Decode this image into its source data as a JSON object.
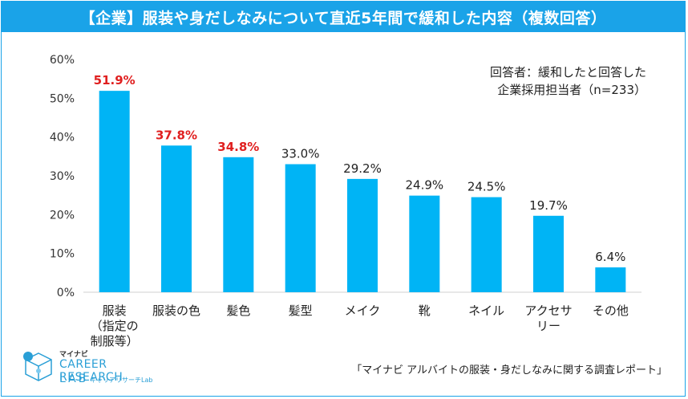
{
  "title": "【企業】服装や身だしなみについて直近5年間で緩和した内容（複数回答）",
  "note": {
    "line1": "回答者：緩和したと回答した",
    "line2": "企業採用担当者（n=233）"
  },
  "source": "「マイナビ アルバイトの服装・身だしなみに関する調査レポート」",
  "logo": {
    "small": "マイナビ",
    "main": "CAREER RESEARCH",
    "lab": "LAB",
    "kana": "キャリアリサーチLab"
  },
  "colors": {
    "bar": "#00b4f5",
    "highlight_label": "#e02020",
    "normal_label": "#222222",
    "axis": "#333333",
    "title_bg": "#1aa3e8"
  },
  "chart_data": {
    "type": "bar",
    "title": "【企業】服装や身だしなみについて直近5年間で緩和した内容（複数回答）",
    "categories": [
      [
        "服装",
        "（指定の",
        "制服等）"
      ],
      [
        "服装の色"
      ],
      [
        "髪色"
      ],
      [
        "髪型"
      ],
      [
        "メイク"
      ],
      [
        "靴"
      ],
      [
        "ネイル"
      ],
      [
        "アクセサ",
        "リー"
      ],
      [
        "その他"
      ]
    ],
    "values": [
      51.9,
      37.8,
      34.8,
      33.0,
      29.2,
      24.9,
      24.5,
      19.7,
      6.4
    ],
    "value_labels": [
      "51.9%",
      "37.8%",
      "34.8%",
      "33.0%",
      "29.2%",
      "24.9%",
      "24.5%",
      "19.7%",
      "6.4%"
    ],
    "highlight": [
      true,
      true,
      true,
      false,
      false,
      false,
      false,
      false,
      false
    ],
    "ylim": [
      0,
      60
    ],
    "yticks": [
      "0%",
      "10%",
      "20%",
      "30%",
      "40%",
      "50%",
      "60%"
    ],
    "xlabel": "",
    "ylabel": "",
    "grid": false
  }
}
